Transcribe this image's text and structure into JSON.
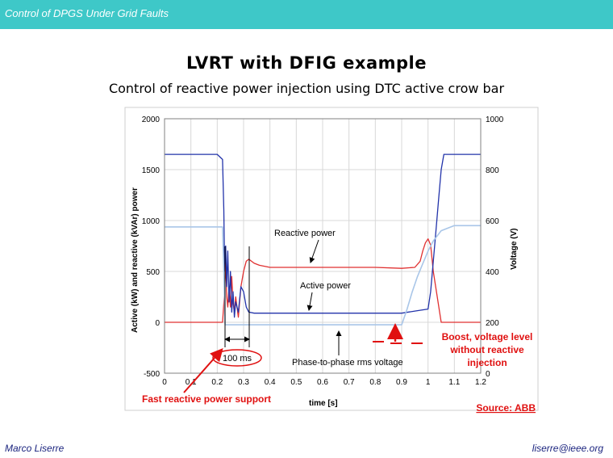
{
  "header": {
    "title": "Control of DPGS Under Grid Faults"
  },
  "slide": {
    "title": "LVRT with DFIG example",
    "subtitle": "Control of reactive power injection using DTC active crow bar"
  },
  "footer": {
    "author": "Marco Liserre",
    "email": "liserre@ieee.org"
  },
  "colors": {
    "header": "#3ec8c8",
    "reactive_power": "#e03030",
    "active_power": "#2233aa",
    "voltage": "#a9c6e8",
    "annotation_red": "#e01010"
  },
  "chart_data": {
    "type": "line",
    "xlabel": "time [s]",
    "ylabel_left": "Active (kW) and reactive (kVAr) power",
    "ylabel_right": "Voltage (V)",
    "xlim": [
      0,
      1.2
    ],
    "ylim_left": [
      -500,
      2000
    ],
    "ylim_right": [
      0,
      1000
    ],
    "x_ticks": [
      "0",
      "0.1",
      "0.2",
      "0.3",
      "0.4",
      "0.5",
      "0.6",
      "0.7",
      "0.8",
      "0.9",
      "1",
      "1.1",
      "1.2"
    ],
    "y_left_ticks": [
      "2000",
      "1500",
      "1000",
      "500",
      "0",
      "-500"
    ],
    "y_right_ticks": [
      "1000",
      "800",
      "600",
      "400",
      "200",
      "0"
    ],
    "grid": true,
    "series": [
      {
        "name": "Reactive power",
        "axis": "left",
        "color": "#e03030",
        "x": [
          0,
          0.05,
          0.1,
          0.15,
          0.2,
          0.22,
          0.228,
          0.232,
          0.236,
          0.24,
          0.245,
          0.25,
          0.255,
          0.26,
          0.265,
          0.27,
          0.28,
          0.29,
          0.3,
          0.31,
          0.32,
          0.34,
          0.36,
          0.4,
          0.5,
          0.6,
          0.7,
          0.8,
          0.9,
          0.95,
          0.97,
          0.98,
          0.99,
          1.0,
          1.01,
          1.02,
          1.05,
          1.1,
          1.15,
          1.2
        ],
        "y": [
          0,
          0,
          0,
          0,
          0,
          0,
          300,
          600,
          250,
          150,
          350,
          150,
          450,
          200,
          100,
          250,
          50,
          350,
          500,
          600,
          620,
          580,
          560,
          540,
          540,
          540,
          540,
          540,
          530,
          540,
          600,
          700,
          780,
          820,
          760,
          500,
          0,
          0,
          0,
          0
        ]
      },
      {
        "name": "Active power",
        "axis": "left",
        "color": "#2233aa",
        "x": [
          0,
          0.05,
          0.1,
          0.15,
          0.2,
          0.22,
          0.225,
          0.228,
          0.232,
          0.236,
          0.24,
          0.245,
          0.25,
          0.255,
          0.26,
          0.265,
          0.27,
          0.28,
          0.29,
          0.3,
          0.31,
          0.32,
          0.34,
          0.4,
          0.5,
          0.6,
          0.7,
          0.8,
          0.9,
          0.95,
          1.0,
          1.01,
          1.02,
          1.03,
          1.04,
          1.05,
          1.06,
          1.08,
          1.1,
          1.15,
          1.2
        ],
        "y": [
          1650,
          1650,
          1650,
          1650,
          1650,
          1600,
          1100,
          500,
          750,
          350,
          700,
          200,
          500,
          100,
          300,
          50,
          200,
          100,
          350,
          300,
          150,
          100,
          90,
          90,
          90,
          90,
          90,
          90,
          90,
          110,
          130,
          300,
          600,
          900,
          1200,
          1500,
          1650,
          1650,
          1650,
          1650,
          1650
        ]
      },
      {
        "name": "Phase-to-phase rms voltage",
        "axis": "right",
        "color": "#a9c6e8",
        "x": [
          0,
          0.1,
          0.2,
          0.22,
          0.225,
          0.23,
          0.25,
          0.3,
          0.4,
          0.5,
          0.6,
          0.7,
          0.8,
          0.9,
          0.92,
          0.94,
          0.96,
          0.98,
          1.0,
          1.02,
          1.05,
          1.1,
          1.15,
          1.2
        ],
        "y": [
          575,
          575,
          575,
          575,
          400,
          190,
          190,
          190,
          190,
          190,
          190,
          190,
          190,
          190,
          250,
          320,
          380,
          430,
          480,
          520,
          560,
          580,
          580,
          580
        ]
      }
    ],
    "annotations": {
      "reactive_power": "Reactive power",
      "active_power": "Active power",
      "voltage": "Phase-to-phase rms voltage",
      "interval": "100 ms",
      "fast_support": "Fast reactive power support",
      "boost_line1": "Boost, voltage level",
      "boost_line2": "without reactive",
      "boost_line3": "injection",
      "source": "Source: ABB"
    }
  }
}
